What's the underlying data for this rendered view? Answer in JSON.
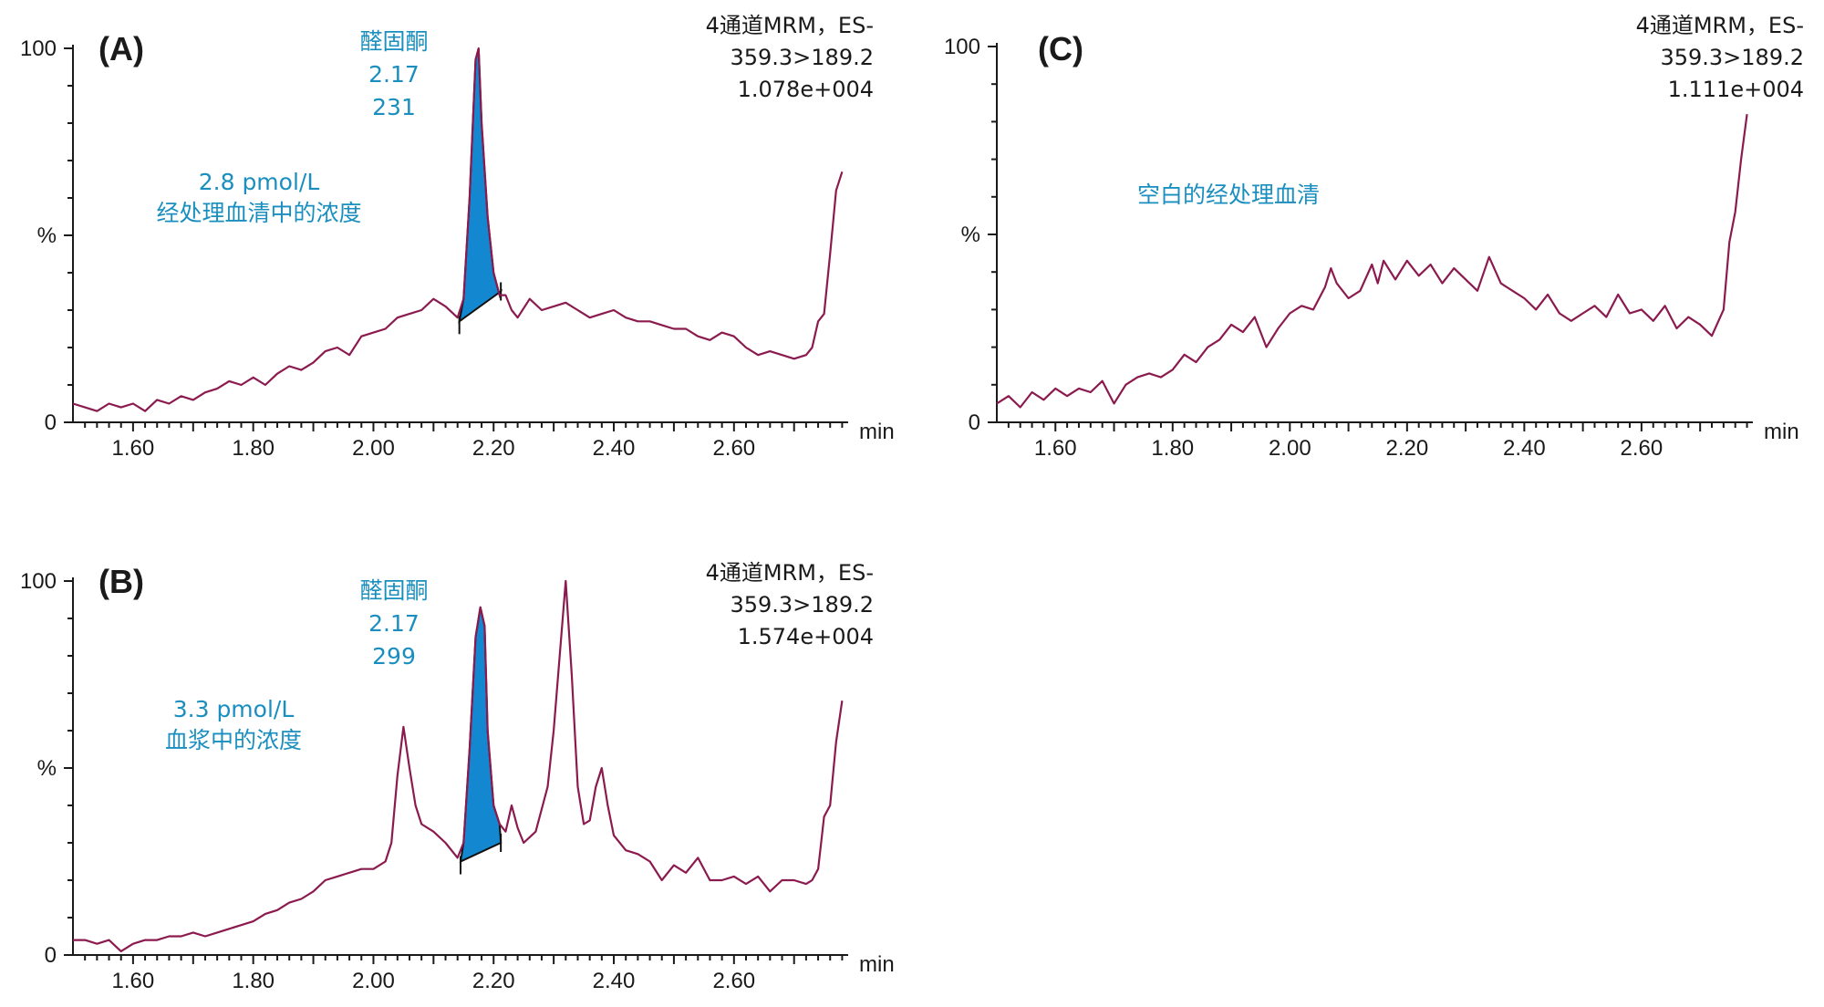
{
  "colors": {
    "trace": "#8b1a4f",
    "peak_fill": "#1388d0",
    "annotation": "#1a8fbf",
    "axis": "#1a1a1a"
  },
  "chart_data": [
    {
      "panel": "(A)",
      "type": "line",
      "xlabel": "min",
      "ylabel": "%",
      "xlim": [
        1.5,
        2.79
      ],
      "ylim": [
        0,
        100
      ],
      "x_ticks": [
        "1.60",
        "1.80",
        "2.00",
        "2.20",
        "2.40",
        "2.60"
      ],
      "y_ticks": [
        "0",
        "%",
        "100"
      ],
      "info_lines": [
        "4通道MRM，ES-",
        "359.3>189.2",
        "1.078e+004"
      ],
      "peak_label_lines": [
        "醛固酮",
        "2.17",
        "231"
      ],
      "concentration_lines": [
        "2.8 pmol/L",
        "经处理血清中的浓度"
      ],
      "shaded_peak": {
        "start": 2.143,
        "apex": 2.175,
        "end": 2.212,
        "start_y": 27,
        "end_y": 35
      },
      "series": [
        {
          "x": [
            1.5,
            1.52,
            1.54,
            1.56,
            1.58,
            1.6,
            1.62,
            1.64,
            1.66,
            1.68,
            1.7,
            1.72,
            1.74,
            1.76,
            1.78,
            1.8,
            1.82,
            1.84,
            1.86,
            1.88,
            1.9,
            1.92,
            1.94,
            1.96,
            1.98,
            2.0,
            2.02,
            2.04,
            2.06,
            2.08,
            2.1,
            2.12,
            2.14,
            2.15,
            2.16,
            2.17,
            2.175,
            2.18,
            2.19,
            2.2,
            2.21,
            2.22,
            2.23,
            2.24,
            2.26,
            2.28,
            2.3,
            2.32,
            2.34,
            2.36,
            2.38,
            2.4,
            2.42,
            2.44,
            2.46,
            2.48,
            2.5,
            2.52,
            2.54,
            2.56,
            2.58,
            2.6,
            2.62,
            2.64,
            2.66,
            2.68,
            2.7,
            2.72,
            2.73,
            2.74,
            2.75,
            2.76,
            2.77,
            2.78
          ],
          "y": [
            5,
            4,
            3,
            5,
            4,
            5,
            3,
            6,
            5,
            7,
            6,
            8,
            9,
            11,
            10,
            12,
            10,
            13,
            15,
            14,
            16,
            19,
            20,
            18,
            23,
            24,
            25,
            28,
            29,
            30,
            33,
            31,
            28,
            33,
            60,
            97,
            100,
            80,
            55,
            40,
            34,
            34,
            30,
            28,
            33,
            30,
            31,
            32,
            30,
            28,
            29,
            30,
            28,
            27,
            27,
            26,
            25,
            25,
            23,
            22,
            24,
            23,
            20,
            18,
            19,
            18,
            17,
            18,
            20,
            27,
            29,
            45,
            62,
            67
          ]
        }
      ]
    },
    {
      "panel": "(B)",
      "type": "line",
      "xlabel": "min",
      "ylabel": "%",
      "xlim": [
        1.5,
        2.79
      ],
      "ylim": [
        0,
        100
      ],
      "x_ticks": [
        "1.60",
        "1.80",
        "2.00",
        "2.20",
        "2.40",
        "2.60"
      ],
      "y_ticks": [
        "0",
        "%",
        "100"
      ],
      "info_lines": [
        "4通道MRM，ES-",
        "359.3>189.2",
        "1.574e+004"
      ],
      "peak_label_lines": [
        "醛固酮",
        "2.17",
        "299"
      ],
      "concentration_lines": [
        "3.3 pmol/L",
        "血浆中的浓度"
      ],
      "shaded_peak": {
        "start": 2.145,
        "apex": 2.178,
        "end": 2.212,
        "start_y": 25,
        "end_y": 30
      },
      "series": [
        {
          "x": [
            1.5,
            1.52,
            1.54,
            1.56,
            1.58,
            1.6,
            1.62,
            1.64,
            1.66,
            1.68,
            1.7,
            1.72,
            1.74,
            1.76,
            1.78,
            1.8,
            1.82,
            1.84,
            1.86,
            1.88,
            1.9,
            1.92,
            1.94,
            1.96,
            1.98,
            2.0,
            2.02,
            2.03,
            2.04,
            2.05,
            2.06,
            2.07,
            2.08,
            2.1,
            2.12,
            2.14,
            2.15,
            2.16,
            2.17,
            2.178,
            2.185,
            2.19,
            2.2,
            2.21,
            2.22,
            2.23,
            2.24,
            2.25,
            2.27,
            2.29,
            2.3,
            2.31,
            2.32,
            2.33,
            2.34,
            2.35,
            2.36,
            2.37,
            2.38,
            2.39,
            2.4,
            2.42,
            2.44,
            2.46,
            2.48,
            2.5,
            2.52,
            2.54,
            2.56,
            2.58,
            2.6,
            2.62,
            2.64,
            2.66,
            2.68,
            2.7,
            2.72,
            2.73,
            2.74,
            2.75,
            2.76,
            2.77,
            2.78
          ],
          "y": [
            4,
            4,
            3,
            4,
            1,
            3,
            4,
            4,
            5,
            5,
            6,
            5,
            6,
            7,
            8,
            9,
            11,
            12,
            14,
            15,
            17,
            20,
            21,
            22,
            23,
            23,
            25,
            30,
            48,
            61,
            50,
            40,
            35,
            33,
            30,
            26,
            30,
            55,
            85,
            93,
            88,
            60,
            40,
            35,
            33,
            40,
            34,
            30,
            33,
            45,
            60,
            80,
            100,
            75,
            45,
            35,
            36,
            45,
            50,
            40,
            32,
            28,
            27,
            25,
            20,
            24,
            22,
            26,
            20,
            20,
            21,
            19,
            21,
            17,
            20,
            20,
            19,
            20,
            23,
            37,
            40,
            57,
            68
          ]
        }
      ]
    },
    {
      "panel": "(C)",
      "type": "line",
      "xlabel": "min",
      "ylabel": "%",
      "xlim": [
        1.5,
        2.79
      ],
      "ylim": [
        0,
        100
      ],
      "x_ticks": [
        "1.60",
        "1.80",
        "2.00",
        "2.20",
        "2.40",
        "2.60"
      ],
      "y_ticks": [
        "0",
        "%",
        "100"
      ],
      "info_lines": [
        "4通道MRM，ES-",
        "359.3>189.2",
        "1.111e+004"
      ],
      "concentration_lines": [
        "空白的经处理血清"
      ],
      "series": [
        {
          "x": [
            1.5,
            1.52,
            1.54,
            1.56,
            1.58,
            1.6,
            1.62,
            1.64,
            1.66,
            1.68,
            1.7,
            1.72,
            1.74,
            1.76,
            1.78,
            1.8,
            1.82,
            1.84,
            1.86,
            1.88,
            1.9,
            1.92,
            1.94,
            1.96,
            1.98,
            2.0,
            2.02,
            2.04,
            2.06,
            2.07,
            2.08,
            2.1,
            2.12,
            2.14,
            2.15,
            2.16,
            2.18,
            2.2,
            2.22,
            2.24,
            2.26,
            2.28,
            2.3,
            2.32,
            2.34,
            2.36,
            2.38,
            2.4,
            2.42,
            2.44,
            2.46,
            2.48,
            2.5,
            2.52,
            2.54,
            2.56,
            2.58,
            2.6,
            2.62,
            2.64,
            2.66,
            2.68,
            2.7,
            2.72,
            2.74,
            2.75,
            2.76,
            2.77,
            2.78
          ],
          "y": [
            5,
            7,
            4,
            8,
            6,
            9,
            7,
            9,
            8,
            11,
            5,
            10,
            12,
            13,
            12,
            14,
            18,
            16,
            20,
            22,
            26,
            24,
            28,
            20,
            25,
            29,
            31,
            30,
            36,
            41,
            37,
            33,
            35,
            42,
            37,
            43,
            38,
            43,
            39,
            42,
            37,
            41,
            38,
            35,
            44,
            37,
            35,
            33,
            30,
            34,
            29,
            27,
            29,
            31,
            28,
            34,
            29,
            30,
            27,
            31,
            25,
            28,
            26,
            23,
            30,
            48,
            56,
            70,
            82
          ]
        }
      ]
    }
  ]
}
